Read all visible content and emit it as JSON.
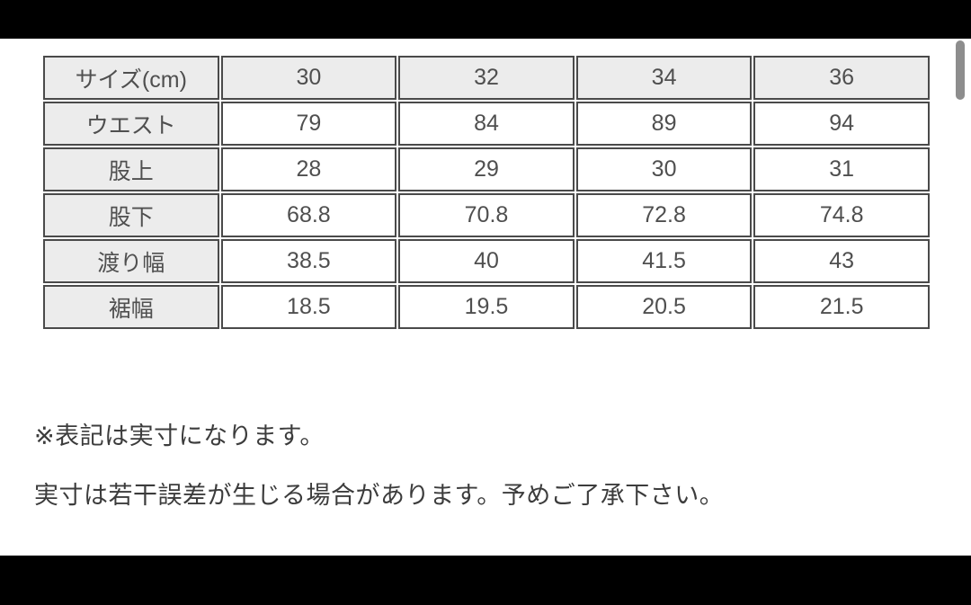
{
  "table": {
    "header": [
      "サイズ(cm)",
      "30",
      "32",
      "34",
      "36"
    ],
    "rows": [
      {
        "label": "ウエスト",
        "values": [
          "79",
          "84",
          "89",
          "94"
        ]
      },
      {
        "label": "股上",
        "values": [
          "28",
          "29",
          "30",
          "31"
        ]
      },
      {
        "label": "股下",
        "values": [
          "68.8",
          "70.8",
          "72.8",
          "74.8"
        ]
      },
      {
        "label": "渡り幅",
        "values": [
          "38.5",
          "40",
          "41.5",
          "43"
        ]
      },
      {
        "label": "裾幅",
        "values": [
          "18.5",
          "19.5",
          "20.5",
          "21.5"
        ]
      }
    ]
  },
  "notes": {
    "line1": "※表記は実寸になります。",
    "line2": "実寸は若干誤差が生じる場合があります。予めご了承下さい。"
  },
  "colors": {
    "letterbox": "#000000",
    "content_bg": "#ffffff",
    "cell_border": "#4a4a4a",
    "header_cell_bg": "#ececec",
    "table_text": "#4f4f4f",
    "note_text": "#3c3c3c",
    "scrollbar_thumb": "#8d8d8d"
  }
}
